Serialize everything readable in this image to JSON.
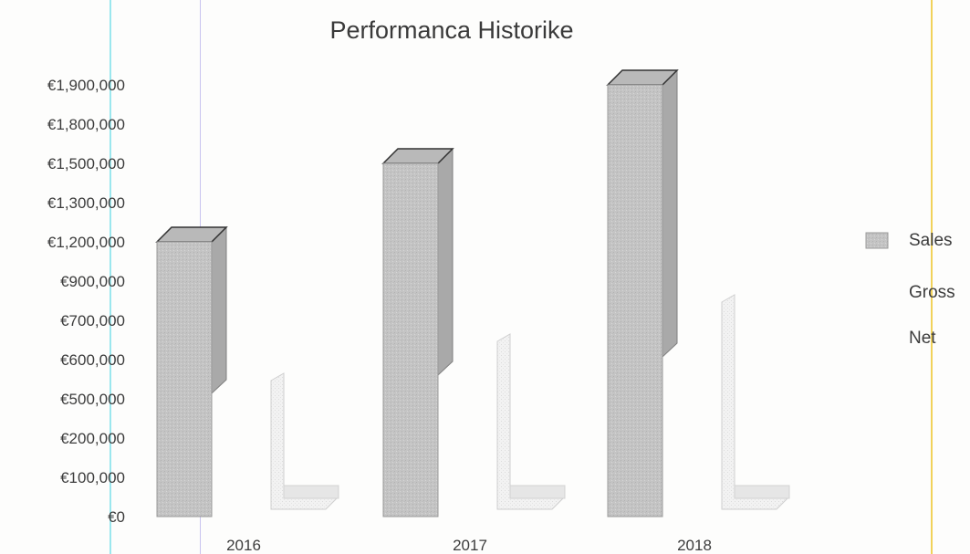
{
  "chart_data": {
    "type": "bar",
    "title": "Performanca Historike",
    "xlabel": "",
    "ylabel": "",
    "categories": [
      "2016",
      "2017",
      "2018"
    ],
    "y_tick_labels": [
      "€0",
      "€100,000",
      "€200,000",
      "€500,000",
      "€600,000",
      "€700,000",
      "€900,000",
      "€1,200,000",
      "€1,300,000",
      "€1,500,000",
      "€1,800,000",
      "€1,900,000"
    ],
    "series": [
      {
        "name": "Sales",
        "values": [
          1200000,
          1500000,
          1900000
        ],
        "color": "#c4c4c4"
      },
      {
        "name": "Gross",
        "values": [
          500000,
          600000,
          700000
        ],
        "color": "#ececec"
      },
      {
        "name": "Net",
        "values": [
          100000,
          100000,
          100000
        ],
        "color": "#e8e8e8"
      }
    ],
    "legend": {
      "position": "right",
      "entries": [
        "Sales",
        "Gross",
        "Net"
      ]
    },
    "grid": false,
    "style": "3d-bar"
  },
  "colors": {
    "guide_cyan": "#9be7ee",
    "guide_purple": "#c8c3ef",
    "guide_yellow": "#f1d25a"
  }
}
